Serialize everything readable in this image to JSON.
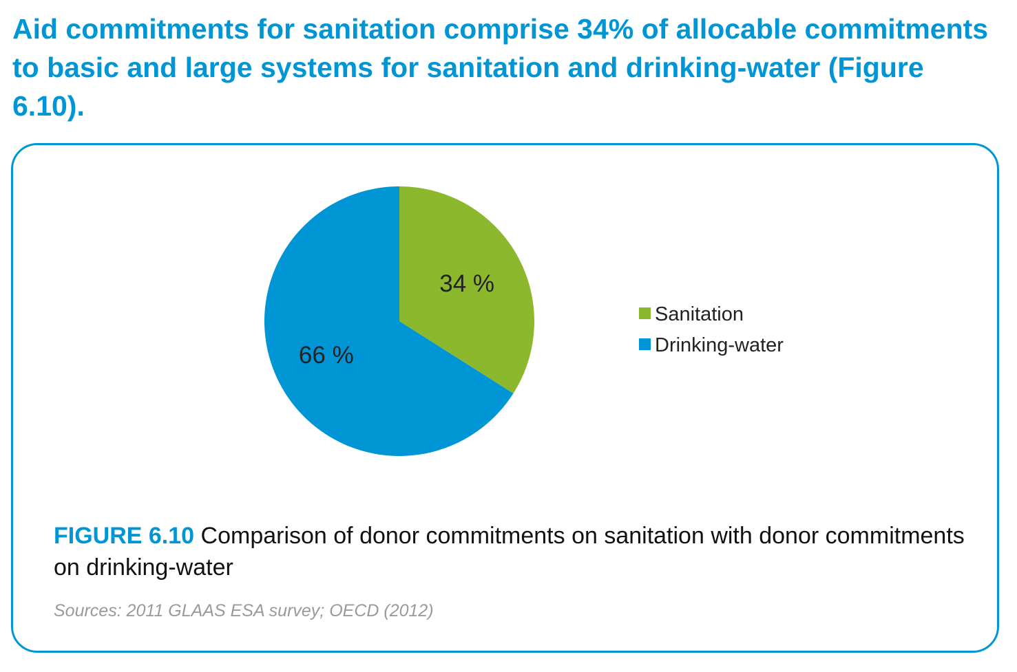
{
  "headline": "Aid commitments for sanitation comprise 34% of allocable commitments to basic and large systems for sanitation and drinking-water (Figure 6.10).",
  "caption": {
    "figure_number": "FIGURE 6.10",
    "text": "Comparison of donor commitments on sanitation with donor commitments on drinking-water"
  },
  "sources": "Sources: 2011 GLAAS ESA survey; OECD (2012)",
  "chart_data": {
    "type": "pie",
    "title": "",
    "legend_placement": "right",
    "slices": [
      {
        "name": "Sanitation",
        "value": 34,
        "label": "34 %",
        "color": "#8cb82e"
      },
      {
        "name": "Drinking-water",
        "value": 66,
        "label": "66 %",
        "color": "#0096d6"
      }
    ]
  }
}
